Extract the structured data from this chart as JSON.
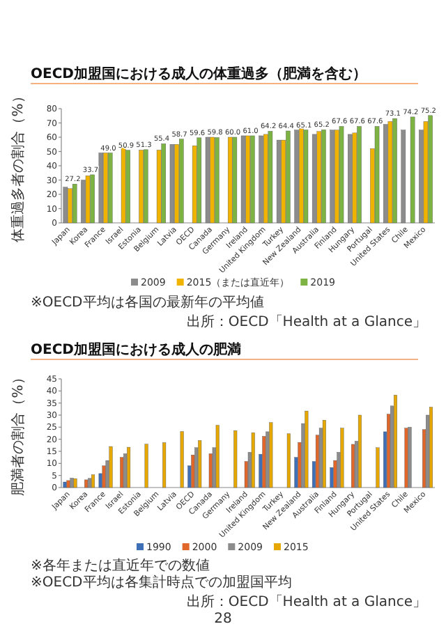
{
  "chart_data": [
    {
      "type": "bar",
      "title": "OECD加盟国における成人の体重過多（肥満を含む）",
      "ylabel": "体重過多者の割合（%）",
      "categories": [
        "Japan",
        "Korea",
        "France",
        "Israel",
        "Estonia",
        "Belgium",
        "Latvia",
        "OECD",
        "Canada",
        "Germany",
        "Ireland",
        "United Kingdom",
        "Turkey",
        "New Zealand",
        "Australia",
        "Finland",
        "Hungary",
        "Portugal",
        "United States",
        "Chile",
        "Mexico"
      ],
      "series": [
        {
          "name": "2009",
          "color": "#8c8c8c",
          "values": [
            25,
            30,
            49,
            null,
            null,
            null,
            55,
            null,
            60,
            null,
            61,
            61,
            58,
            65,
            62,
            65,
            62,
            null,
            69,
            65,
            65
          ]
        },
        {
          "name": "2015（または直近年）",
          "color": "#f0b400",
          "values": [
            24,
            33,
            49,
            53,
            51,
            51,
            55,
            54,
            60,
            60,
            61,
            62,
            58,
            66,
            64,
            65,
            63,
            52,
            71,
            null,
            71
          ]
        },
        {
          "name": "2019",
          "color": "#7cb342",
          "values": [
            27.2,
            33.7,
            49.0,
            50.9,
            51.3,
            55.4,
            58.7,
            59.6,
            59.8,
            60.0,
            61.0,
            64.2,
            64.4,
            65.1,
            65.2,
            67.6,
            67.6,
            67.6,
            73.1,
            74.2,
            75.2
          ],
          "value_labels": [
            "27.2",
            "33.7",
            "49.0",
            "50.9",
            "51.3",
            "55.4",
            "58.7",
            "59.6",
            "59.8",
            "60.0",
            "61.0",
            "64.2",
            "64.4",
            "65.1",
            "65.2",
            "67.6",
            "67.6",
            "67.6",
            "73.1",
            "74.2",
            "75.2"
          ]
        }
      ],
      "ylim": [
        0,
        80
      ],
      "yticks": [
        0,
        10,
        20,
        30,
        40,
        50,
        60,
        70,
        80
      ],
      "grid": false,
      "legend": "bottom",
      "annotations": [
        "※OECD平均は各国の最新年の平均値",
        "出所：OECD「Health at a Glance」"
      ]
    },
    {
      "type": "bar",
      "title": "OECD加盟国における成人の肥満",
      "ylabel": "肥満者の割合（%）",
      "categories": [
        "Japan",
        "Korea",
        "France",
        "Israel",
        "Estonia",
        "Belgium",
        "Latvia",
        "OECD",
        "Canada",
        "Germany",
        "Ireland",
        "United Kingdom",
        "Turkey",
        "New Zealand",
        "Australia",
        "Finland",
        "Hungary",
        "Portugal",
        "United States",
        "Chile",
        "Mexico"
      ],
      "series": [
        {
          "name": "1990",
          "color": "#3f6fb6",
          "values": [
            2.3,
            null,
            5.8,
            null,
            null,
            null,
            null,
            9.0,
            null,
            null,
            null,
            13.8,
            null,
            12.5,
            10.8,
            8.3,
            null,
            null,
            23.1,
            null,
            null
          ]
        },
        {
          "name": "2000",
          "color": "#e0662a",
          "values": [
            2.9,
            3.2,
            9.0,
            12.5,
            null,
            null,
            null,
            13.5,
            14.0,
            null,
            10.8,
            21.2,
            null,
            18.7,
            21.7,
            11.2,
            17.9,
            null,
            30.4,
            24.6,
            24.0
          ]
        },
        {
          "name": "2009",
          "color": "#8c8c8c",
          "values": [
            3.9,
            3.8,
            11.2,
            14.0,
            null,
            null,
            null,
            16.5,
            16.5,
            null,
            14.6,
            23.1,
            null,
            26.5,
            24.6,
            14.6,
            19.2,
            null,
            33.8,
            25.0,
            30.0
          ]
        },
        {
          "name": "2015",
          "color": "#e6a800",
          "values": [
            3.7,
            5.3,
            17.0,
            16.7,
            18.0,
            18.6,
            23.2,
            19.5,
            25.8,
            23.6,
            22.7,
            26.9,
            22.3,
            31.7,
            27.9,
            24.6,
            30.0,
            16.5,
            38.3,
            null,
            33.3
          ]
        }
      ],
      "ylim": [
        0,
        45
      ],
      "yticks": [
        0,
        5,
        10,
        15,
        20,
        25,
        30,
        35,
        40,
        45
      ],
      "grid": false,
      "legend": "bottom",
      "annotations": [
        "※各年または直近年での数値",
        "※OECD平均は各集計時点での加盟国平均",
        "出所：OECD「Health at a Glance」",
        "28"
      ]
    }
  ]
}
